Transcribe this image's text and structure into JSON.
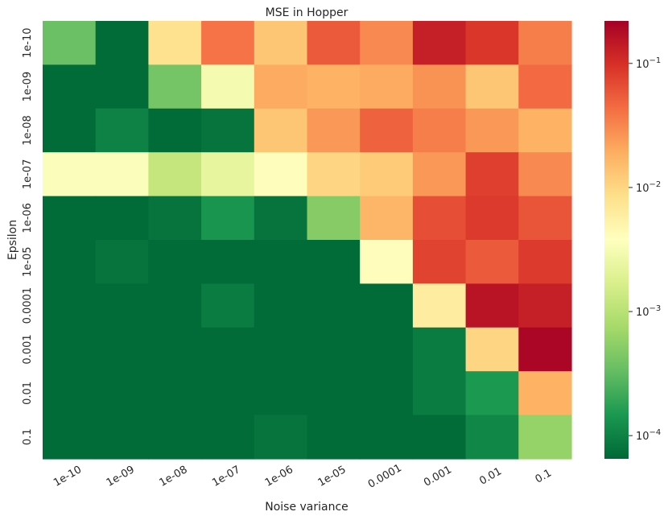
{
  "chart_data": {
    "type": "heatmap",
    "title": "MSE in Hopper",
    "xlabel": "Noise variance",
    "ylabel": "Epsilon",
    "x_categories": [
      "1e-10",
      "1e-09",
      "1e-08",
      "1e-07",
      "1e-06",
      "1e-05",
      "0.0001",
      "0.001",
      "0.01",
      "0.1"
    ],
    "y_categories": [
      "1e-10",
      "1e-09",
      "1e-08",
      "1e-07",
      "1e-06",
      "1e-05",
      "0.0001",
      "0.001",
      "0.01",
      "0.1"
    ],
    "values": [
      [
        0.00035,
        7e-05,
        0.008,
        0.04,
        0.013,
        0.055,
        0.03,
        0.13,
        0.09,
        0.035
      ],
      [
        7e-05,
        7e-05,
        0.0004,
        0.003,
        0.02,
        0.018,
        0.02,
        0.027,
        0.013,
        0.045
      ],
      [
        7e-05,
        0.0001,
        7e-05,
        8e-05,
        0.013,
        0.025,
        0.05,
        0.035,
        0.025,
        0.018
      ],
      [
        0.0035,
        0.0035,
        0.0012,
        0.0023,
        0.004,
        0.01,
        0.012,
        0.025,
        0.08,
        0.03
      ],
      [
        7e-05,
        7e-05,
        8e-05,
        0.00014,
        8e-05,
        0.0005,
        0.017,
        0.065,
        0.085,
        0.06
      ],
      [
        7e-05,
        8e-05,
        7e-05,
        7e-05,
        7e-05,
        7e-05,
        0.004,
        0.075,
        0.055,
        0.085
      ],
      [
        7e-05,
        7e-05,
        7e-05,
        9e-05,
        7e-05,
        7e-05,
        7e-05,
        0.006,
        0.16,
        0.13
      ],
      [
        7e-05,
        7e-05,
        7e-05,
        7e-05,
        7e-05,
        7e-05,
        7e-05,
        9e-05,
        0.01,
        0.2
      ],
      [
        7e-05,
        7e-05,
        7e-05,
        7e-05,
        7e-05,
        7e-05,
        7e-05,
        9e-05,
        0.00015,
        0.018
      ],
      [
        7e-05,
        7e-05,
        7e-05,
        7e-05,
        8e-05,
        7e-05,
        7e-05,
        7e-05,
        0.00011,
        0.0006
      ]
    ],
    "colorbar": {
      "scale": "log",
      "range": [
        6.5e-05,
        0.22
      ],
      "colormap": "RdYlGn_r",
      "ticks": [
        {
          "value": 0.0001,
          "base": "10",
          "exp": "−4"
        },
        {
          "value": 0.001,
          "base": "10",
          "exp": "−3"
        },
        {
          "value": 0.01,
          "base": "10",
          "exp": "−2"
        },
        {
          "value": 0.1,
          "base": "10",
          "exp": "−1"
        }
      ]
    },
    "grid": false
  }
}
